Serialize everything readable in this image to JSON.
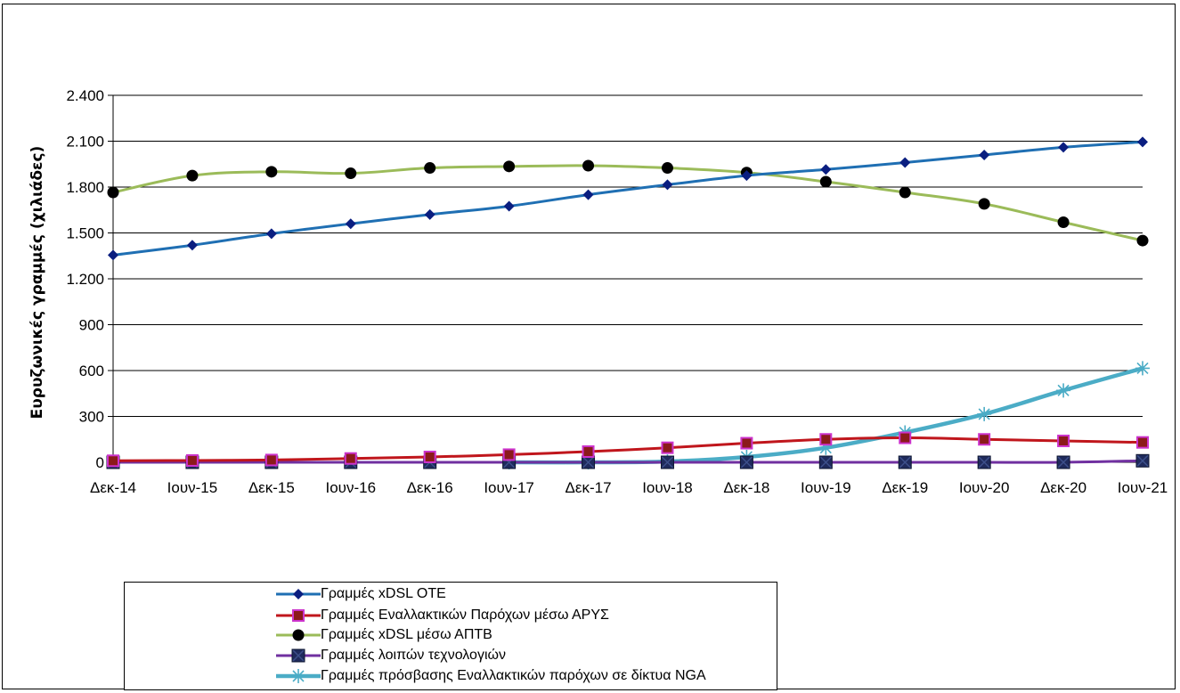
{
  "chart_data": {
    "type": "line",
    "title": "",
    "xlabel": "",
    "ylabel": "Ευρυζωνικές γραμμές (χιλιάδες)",
    "ylim": [
      0,
      2400
    ],
    "yticks": [
      0,
      300,
      600,
      900,
      1200,
      1500,
      1800,
      2100,
      2400
    ],
    "ytick_labels": [
      "0",
      "300",
      "600",
      "900",
      "1.200",
      "1.500",
      "1.800",
      "2.100",
      "2.400"
    ],
    "grid": "horizontal",
    "legend_position": "bottom-left",
    "categories": [
      "Δεκ-14",
      "Ιουν-15",
      "Δεκ-15",
      "Ιουν-16",
      "Δεκ-16",
      "Ιουν-17",
      "Δεκ-17",
      "Ιουν-18",
      "Δεκ-18",
      "Ιουν-19",
      "Δεκ-19",
      "Ιουν-20",
      "Δεκ-20",
      "Ιουν-21"
    ],
    "series": [
      {
        "name": "Γραμμές xDSL ΟΤΕ",
        "color": "#1f6fb3",
        "marker": "diamond",
        "marker_color": "#0a1e80",
        "values": [
          1355,
          1420,
          1495,
          1560,
          1620,
          1675,
          1750,
          1815,
          1875,
          1915,
          1960,
          2010,
          2060,
          2095
        ]
      },
      {
        "name": "Γραμμές Εναλλακτικών Παρόχων μέσω ΑΡΥΣ",
        "color": "#c0161c",
        "marker": "square",
        "marker_color": "#cc33cc",
        "values": [
          10,
          12,
          15,
          25,
          35,
          50,
          70,
          95,
          125,
          150,
          160,
          150,
          140,
          130
        ]
      },
      {
        "name": "Γραμμές xDSL μέσω ΑΠΤΒ",
        "color": "#9bbb59",
        "marker": "circle",
        "marker_color": "#000000",
        "values": [
          1765,
          1875,
          1900,
          1890,
          1925,
          1935,
          1940,
          1925,
          1895,
          1835,
          1765,
          1690,
          1570,
          1450
        ]
      },
      {
        "name": "Γραμμές λοιπών τεχνολογιών",
        "color": "#7030a0",
        "marker": "square-x",
        "marker_color": "#1f2a5c",
        "values": [
          0,
          0,
          0,
          0,
          0,
          0,
          0,
          0,
          0,
          0,
          0,
          0,
          0,
          10
        ]
      },
      {
        "name": "Γραμμές πρόσβασης Εναλλακτικών παρόχων σε δίκτυα NGA",
        "color": "#4bacc6",
        "marker": "asterisk",
        "marker_color": "#4bacc6",
        "start_index": 5,
        "values": [
          null,
          null,
          null,
          null,
          null,
          0,
          0,
          5,
          35,
          95,
          195,
          315,
          470,
          615
        ]
      }
    ]
  }
}
